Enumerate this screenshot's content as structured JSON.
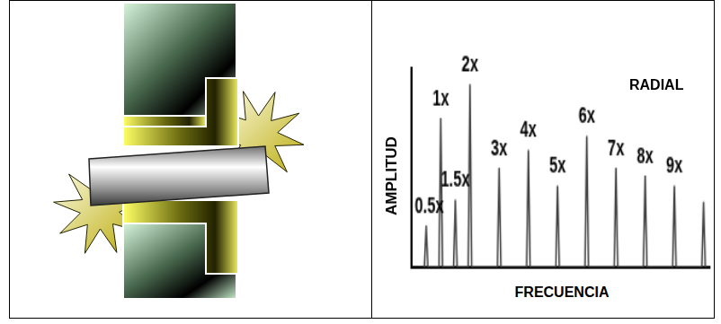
{
  "chart_data": {
    "type": "line",
    "annotation": "RADIAL",
    "x_label": "FRECUENCIA",
    "y_label": "AMPLITUD",
    "categories": [
      "0.5x",
      "1x",
      "1.5x",
      "2x",
      "3x",
      "4x",
      "5x",
      "6x",
      "7x",
      "8x",
      "9x",
      null
    ],
    "x": [
      0.5,
      1,
      1.5,
      2,
      3,
      4,
      5,
      6,
      7,
      8,
      9,
      10
    ],
    "values": [
      21,
      75,
      34,
      92,
      50,
      59,
      41,
      66,
      50,
      46,
      41,
      33
    ],
    "xlim": [
      0,
      10.2
    ],
    "ylim": [
      0,
      100
    ],
    "tick_labels": false,
    "grid": false,
    "color": "#444444",
    "line_style": "solid"
  }
}
